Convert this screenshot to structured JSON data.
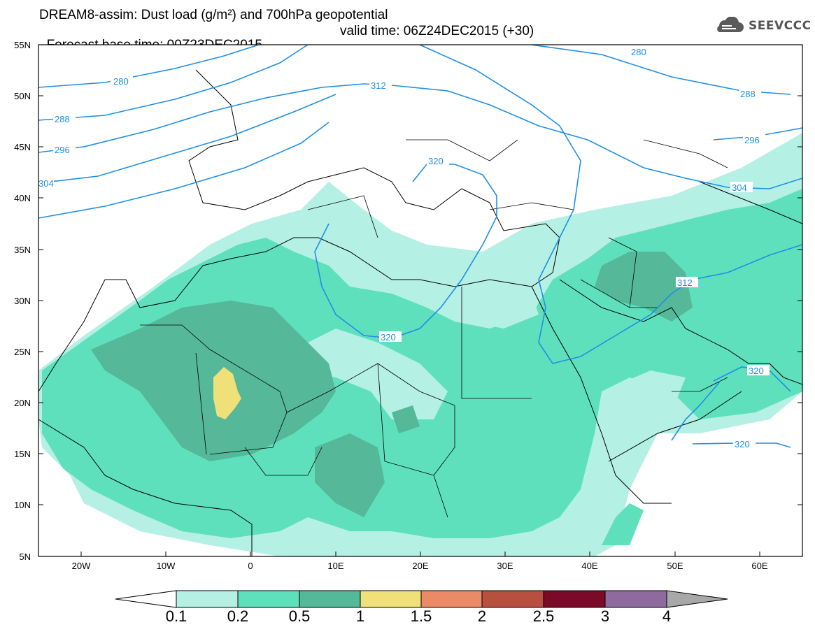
{
  "title": {
    "line1": "DREAM8-assim: Dust load (g/m²) and 700hPa geopotential",
    "line2": "Forecast base time: 00Z23DEC2015",
    "valid": "valid time: 06Z24DEC2015 (+30)"
  },
  "logo": {
    "text": "SEEVCCC",
    "icon": "cloud-icon"
  },
  "axes": {
    "lat_labels": [
      "55N",
      "50N",
      "45N",
      "40N",
      "35N",
      "30N",
      "25N",
      "20N",
      "15N",
      "10N",
      "5N"
    ],
    "lon_labels": [
      "20W",
      "10W",
      "0",
      "10E",
      "20E",
      "30E",
      "40E",
      "50E",
      "60E"
    ],
    "lon_range": [
      -25,
      65
    ],
    "lat_range": [
      5,
      55
    ]
  },
  "contours": {
    "color": "#1e8fe6",
    "labels": [
      "280",
      "280",
      "288",
      "288",
      "296",
      "304",
      "304",
      "312",
      "320",
      "320",
      "312",
      "320",
      "320",
      "296"
    ]
  },
  "colorbar": {
    "labels": [
      "0.1",
      "0.2",
      "0.5",
      "1",
      "1.5",
      "2",
      "2.5",
      "3",
      "4"
    ],
    "colors": [
      "#b4f0e4",
      "#5fe0bc",
      "#55b898",
      "#f0e07a",
      "#ea8a66",
      "#b85040",
      "#7a0a28",
      "#8e6a9e",
      "#a8a8a8"
    ]
  },
  "fills": {
    "level1": "#b4f0e4",
    "level2": "#5fe0bc",
    "level3": "#55b898",
    "level4": "#f0e07a"
  }
}
